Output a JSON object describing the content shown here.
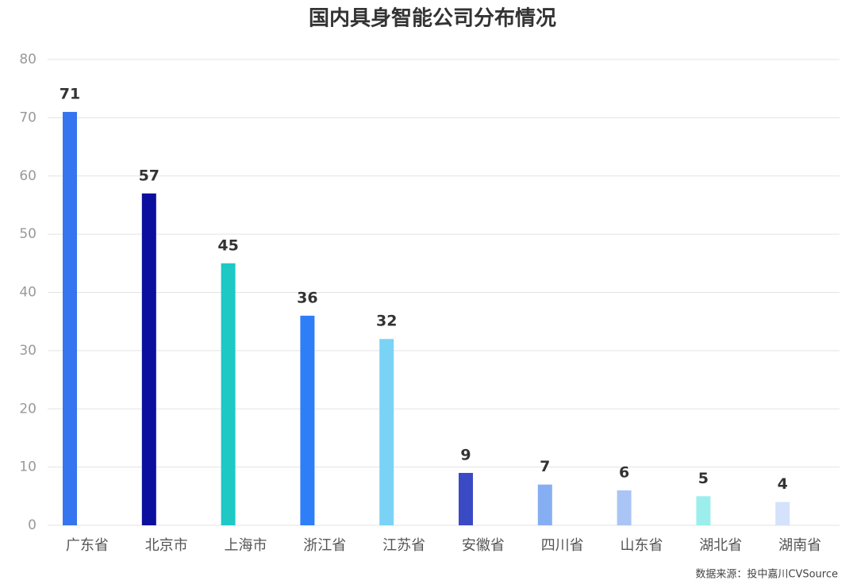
{
  "chart_data": {
    "type": "bar",
    "title": "国内具身智能公司分布情况",
    "categories": [
      "广东省",
      "北京市",
      "上海市",
      "浙江省",
      "江苏省",
      "安徽省",
      "四川省",
      "山东省",
      "湖北省",
      "湖南省"
    ],
    "values": [
      71,
      57,
      45,
      36,
      32,
      9,
      7,
      6,
      5,
      4
    ],
    "colors": [
      "#3575f0",
      "#0a0f9e",
      "#1ec8c5",
      "#2e7ff7",
      "#7ad3f5",
      "#3a4ac4",
      "#86aef2",
      "#aac4f5",
      "#9ceeed",
      "#d4e2fb"
    ],
    "ylim": [
      0,
      80
    ],
    "yticks": [
      0,
      10,
      20,
      30,
      40,
      50,
      60,
      70,
      80
    ],
    "grid": true,
    "source": "数据来源：投中嘉川CVSource"
  }
}
